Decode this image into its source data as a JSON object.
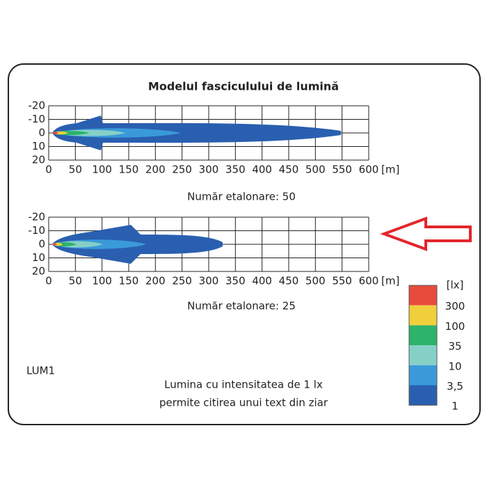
{
  "title": "Modelul fasciculului de lumină",
  "panels": [
    {
      "caption": "Număr etalonare: 50",
      "xticks": [
        0,
        50,
        100,
        150,
        200,
        250,
        300,
        350,
        400,
        450,
        500,
        550,
        600
      ],
      "yticks": [
        -20,
        -10,
        0,
        10,
        20
      ],
      "x_unit": "[m]"
    },
    {
      "caption": "Număr etalonare: 25",
      "xticks": [
        0,
        50,
        100,
        150,
        200,
        250,
        300,
        350,
        400,
        450,
        500,
        550,
        600
      ],
      "yticks": [
        -20,
        -10,
        0,
        10,
        20
      ],
      "x_unit": "[m]"
    }
  ],
  "legend": {
    "unit": "[lx]",
    "labels": [
      "300",
      "100",
      "35",
      "10",
      "3,5",
      "1"
    ]
  },
  "model": "LUM1",
  "note": [
    "Lumina cu intensitatea de 1 lx",
    "permite citirea unui text din ziar"
  ]
}
